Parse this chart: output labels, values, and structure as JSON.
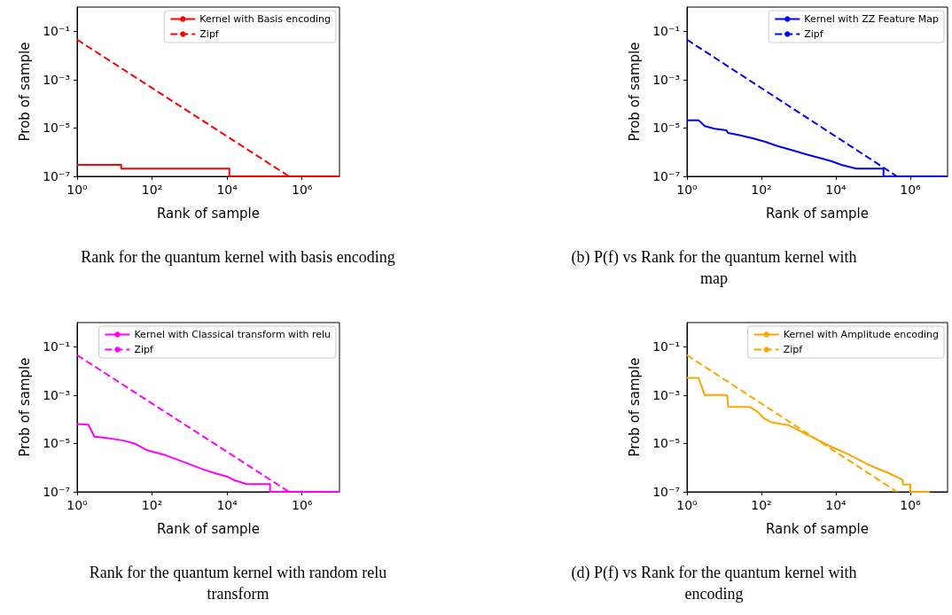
{
  "chart_data": [
    {
      "type": "line",
      "xlabel": "Rank of sample",
      "ylabel": "Prob of sample",
      "log": "xy",
      "legend": "top right",
      "marker": "none",
      "xlim": [
        1,
        10000000
      ],
      "ylim": [
        1e-07,
        1
      ],
      "xticks": [
        {
          "value": 1,
          "label": "10⁰"
        },
        {
          "value": 100,
          "label": "10²"
        },
        {
          "value": 10000,
          "label": "10⁴"
        },
        {
          "value": 1000000,
          "label": "10⁶"
        }
      ],
      "yticks": [
        {
          "value": 0.1,
          "label": "10⁻¹"
        },
        {
          "value": 0.001,
          "label": "10⁻³"
        },
        {
          "value": 1e-05,
          "label": "10⁻⁵"
        },
        {
          "value": 1e-07,
          "label": "10⁻⁷"
        }
      ],
      "annotations": [
        "Rank for the quantum kernel with basis encoding"
      ],
      "series": [
        {
          "name": "Kernel with Basis encoding",
          "type": "step",
          "color": "#ff0000",
          "line_style": "solid",
          "x": [
            1,
            15,
            11500,
            10000000
          ],
          "values": [
            3e-07,
            2.1e-07,
            1e-07,
            1e-07
          ]
        },
        {
          "name": "Zipf",
          "type": "line",
          "color": "#ff0000",
          "line_style": "dashed",
          "x": [
            1,
            450000
          ],
          "values": [
            0.045,
            1e-07
          ]
        }
      ]
    },
    {
      "type": "line",
      "xlabel": "Rank of sample",
      "ylabel": "Prob of sample",
      "log": "xy",
      "legend": "top right",
      "marker": "none",
      "xlim": [
        1,
        10000000
      ],
      "ylim": [
        1e-07,
        1
      ],
      "xticks": [
        {
          "value": 1,
          "label": "10⁰"
        },
        {
          "value": 100,
          "label": "10²"
        },
        {
          "value": 10000,
          "label": "10⁴"
        },
        {
          "value": 1000000,
          "label": "10⁶"
        }
      ],
      "yticks": [
        {
          "value": 0.1,
          "label": "10⁻¹"
        },
        {
          "value": 0.001,
          "label": "10⁻³"
        },
        {
          "value": 1e-05,
          "label": "10⁻⁵"
        },
        {
          "value": 1e-07,
          "label": "10⁻⁷"
        }
      ],
      "annotations": [
        "(b) P(f) vs Rank for the quantum kernel with\nmap"
      ],
      "series": [
        {
          "name": "Kernel with ZZ Feature Map",
          "type": "line",
          "color": "#0000ff",
          "line_style": "solid",
          "x": [
            1,
            2.05,
            3,
            5.5,
            11.5,
            12.6,
            24,
            61,
            127,
            267,
            670,
            1700,
            4300,
            7400,
            14000,
            35000,
            190000,
            190000,
            10000000
          ],
          "values": [
            2.1e-05,
            2.1e-05,
            1.2e-05,
            9.3e-06,
            8.1e-06,
            6.3e-06,
            5.2e-06,
            3.7e-06,
            2.7e-06,
            1.8e-06,
            1.2e-06,
            7.9e-07,
            5.4e-07,
            4.3e-07,
            3e-07,
            2.1e-07,
            2.1e-07,
            1e-07,
            1e-07
          ]
        },
        {
          "name": "Zipf",
          "type": "line",
          "color": "#0000ff",
          "line_style": "dashed",
          "x": [
            1,
            440000
          ],
          "values": [
            0.045,
            1e-07
          ]
        }
      ]
    },
    {
      "type": "line",
      "xlabel": "Rank of sample",
      "ylabel": "Prob of sample",
      "log": "xy",
      "legend": "top right",
      "marker": "none",
      "xlim": [
        1,
        10000000
      ],
      "ylim": [
        1e-07,
        1
      ],
      "xticks": [
        {
          "value": 1,
          "label": "10⁰"
        },
        {
          "value": 100,
          "label": "10²"
        },
        {
          "value": 10000,
          "label": "10⁴"
        },
        {
          "value": 1000000,
          "label": "10⁶"
        }
      ],
      "yticks": [
        {
          "value": 0.1,
          "label": "10⁻¹"
        },
        {
          "value": 0.001,
          "label": "10⁻³"
        },
        {
          "value": 1e-05,
          "label": "10⁻⁵"
        },
        {
          "value": 1e-07,
          "label": "10⁻⁷"
        }
      ],
      "annotations": [
        "Rank for the quantum kernel with random relu\ntransform"
      ],
      "series": [
        {
          "name": "Kernel with Classical transform with relu",
          "type": "line",
          "color": "#ff00ff",
          "line_style": "solid",
          "x": [
            1,
            2,
            2.9,
            6.2,
            16,
            34,
            72,
            225,
            700,
            2200,
            4600,
            9800,
            16000,
            33000,
            140000,
            140000,
            10000000
          ],
          "values": [
            6.3e-05,
            6e-05,
            1.9e-05,
            1.7e-05,
            1.35e-05,
            1e-05,
            5.3e-06,
            3.3e-06,
            1.7e-06,
            8.7e-07,
            6e-07,
            4.3e-07,
            3e-07,
            2.1e-07,
            2.1e-07,
            1e-07,
            1e-07
          ]
        },
        {
          "name": "Zipf",
          "type": "line",
          "color": "#ff00ff",
          "line_style": "dashed",
          "x": [
            1,
            450000
          ],
          "values": [
            0.045,
            1e-07
          ]
        }
      ]
    },
    {
      "type": "line",
      "xlabel": "Rank of sample",
      "ylabel": "Prob of sample",
      "log": "xy",
      "legend": "top right",
      "marker": "none",
      "xlim": [
        1,
        10000000
      ],
      "ylim": [
        1e-07,
        1
      ],
      "xticks": [
        {
          "value": 1,
          "label": "10⁰"
        },
        {
          "value": 100,
          "label": "10²"
        },
        {
          "value": 10000,
          "label": "10⁴"
        },
        {
          "value": 1000000,
          "label": "10⁶"
        }
      ],
      "yticks": [
        {
          "value": 0.1,
          "label": "10⁻¹"
        },
        {
          "value": 0.001,
          "label": "10⁻³"
        },
        {
          "value": 1e-05,
          "label": "10⁻⁵"
        },
        {
          "value": 1e-07,
          "label": "10⁻⁷"
        }
      ],
      "annotations": [
        "(d) P(f) vs Rank for the quantum kernel with\nencoding"
      ],
      "series": [
        {
          "name": "Kernel with Amplitude encoding",
          "type": "line",
          "color": "#ffa500",
          "line_style": "solid",
          "x": [
            1,
            2.05,
            3,
            12,
            12.8,
            50,
            80,
            116,
            185,
            560,
            1700,
            7400,
            22000,
            69000,
            300000,
            630000,
            630000,
            1000000,
            1000000,
            3300000
          ],
          "values": [
            0.0051,
            0.0051,
            0.001,
            0.001,
            0.00033,
            0.00032,
            0.0002,
            0.00011,
            7.6e-05,
            5.6e-05,
            2.3e-05,
            7.4e-06,
            3.5e-06,
            1.4e-06,
            5.4e-07,
            3.1e-07,
            2e-07,
            2e-07,
            1e-07,
            1e-07
          ]
        },
        {
          "name": "Zipf",
          "type": "line",
          "color": "#ffa500",
          "line_style": "dashed",
          "x": [
            1,
            440000
          ],
          "values": [
            0.045,
            1e-07
          ]
        }
      ]
    }
  ]
}
